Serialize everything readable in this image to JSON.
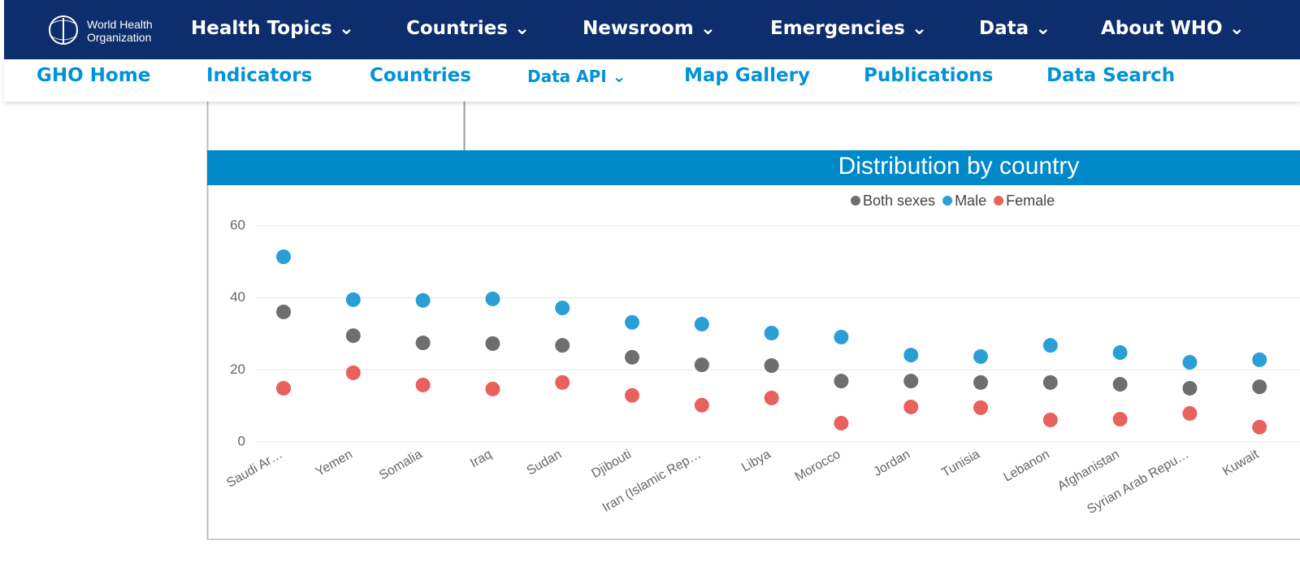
{
  "header": {
    "logo_line1": "World Health",
    "logo_line2": "Organization",
    "nav": [
      "Health Topics",
      "Countries",
      "Newsroom",
      "Emergencies",
      "Data",
      "About WHO"
    ]
  },
  "subnav": [
    "GHO Home",
    "Indicators",
    "Countries",
    "Data API",
    "Map Gallery",
    "Publications",
    "Data Search"
  ],
  "chart_data": {
    "type": "scatter",
    "title": "Distribution by country",
    "categories": [
      "Saudi Ar…",
      "Yemen",
      "Somalia",
      "Iraq",
      "Sudan",
      "Djibouti",
      "Iran (Islamic Rep…",
      "Libya",
      "Morocco",
      "Jordan",
      "Tunisia",
      "Lebanon",
      "Afghanistan",
      "Syrian Arab Repu…",
      "Kuwait"
    ],
    "series": [
      {
        "name": "Both sexes",
        "color": "#6e6e6e",
        "values": [
          36.1,
          29.5,
          27.5,
          27.3,
          26.8,
          23.5,
          21.4,
          21.2,
          16.9,
          16.9,
          16.5,
          16.5,
          16.0,
          14.9,
          15.3
        ]
      },
      {
        "name": "Male",
        "color": "#2a9fd6",
        "values": [
          51.4,
          39.5,
          39.3,
          39.7,
          37.2,
          33.2,
          32.7,
          30.2,
          29.1,
          24.1,
          23.7,
          26.8,
          24.8,
          22.1,
          22.8
        ]
      },
      {
        "name": "Female",
        "color": "#e8615d",
        "values": [
          14.9,
          19.2,
          15.8,
          14.7,
          16.5,
          12.9,
          10.2,
          12.2,
          5.2,
          9.7,
          9.5,
          6.1,
          6.3,
          7.9,
          4.1
        ]
      }
    ],
    "ylim": [
      0,
      60
    ],
    "yticks": [
      0,
      20,
      40,
      60
    ],
    "grid": true
  }
}
